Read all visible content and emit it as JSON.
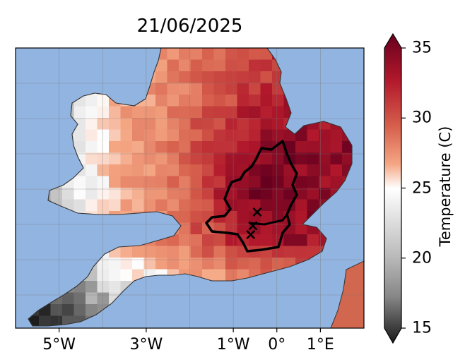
{
  "map": {
    "title": "21/06/2025",
    "x_ticks": [
      "5°W",
      "3°W",
      "1°W",
      "0°",
      "1°E"
    ],
    "x_tick_lon": [
      -5,
      -3,
      -1,
      0,
      1
    ],
    "extent_lon": [
      -6.0,
      2.0
    ],
    "colors": {
      "sea": "#92b4e0",
      "coast": "#333333",
      "boundary": "#000000",
      "grid": "#777777"
    },
    "markers": [
      {
        "symbol": "×",
        "lon": -0.45,
        "lat": 51.7
      },
      {
        "symbol": "×",
        "lon": -0.55,
        "lat": 51.5
      },
      {
        "symbol": "×",
        "lon": -0.6,
        "lat": 51.37
      }
    ]
  },
  "colorbar": {
    "label": "Temperature (C)",
    "ticks": [
      "35",
      "30",
      "25",
      "20",
      "15"
    ],
    "range": [
      15,
      35
    ],
    "colormap": "RdGy_r"
  }
}
